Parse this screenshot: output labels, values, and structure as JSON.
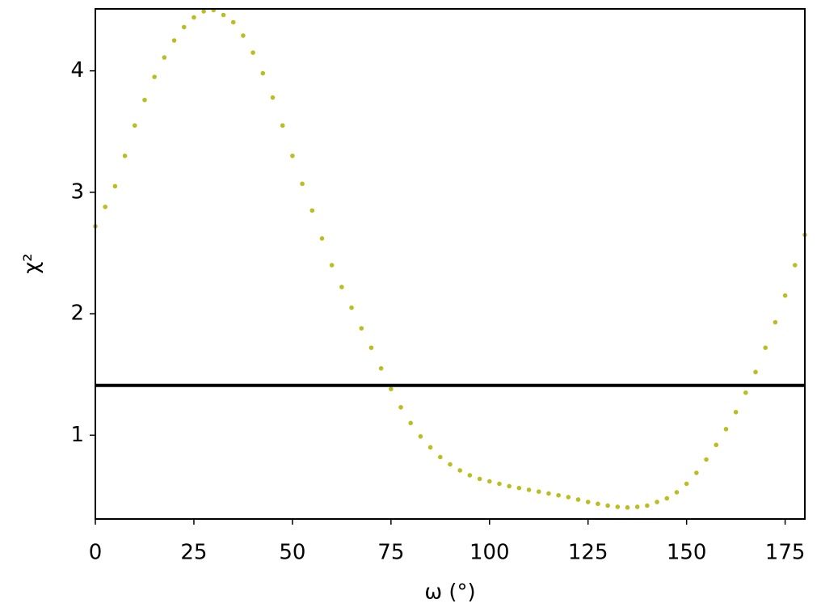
{
  "chart_data": {
    "type": "scatter",
    "xlabel": "ω (°)",
    "ylabel": "χ²",
    "x": [
      0,
      2.5,
      5,
      7.5,
      10,
      12.5,
      15,
      17.5,
      20,
      22.5,
      25,
      27.5,
      30,
      32.5,
      35,
      37.5,
      40,
      42.5,
      45,
      47.5,
      50,
      52.5,
      55,
      57.5,
      60,
      62.5,
      65,
      67.5,
      70,
      72.5,
      75,
      77.5,
      80,
      82.5,
      85,
      87.5,
      90,
      92.5,
      95,
      97.5,
      100,
      102.5,
      105,
      107.5,
      110,
      112.5,
      115,
      117.5,
      120,
      122.5,
      125,
      127.5,
      130,
      132.5,
      135,
      137.5,
      140,
      142.5,
      145,
      147.5,
      150,
      152.5,
      155,
      157.5,
      160,
      162.5,
      165,
      167.5,
      170,
      172.5,
      175,
      177.5,
      180
    ],
    "values": [
      2.72,
      2.88,
      3.05,
      3.3,
      3.55,
      3.76,
      3.95,
      4.11,
      4.25,
      4.36,
      4.44,
      4.49,
      4.5,
      4.46,
      4.4,
      4.29,
      4.15,
      3.98,
      3.78,
      3.55,
      3.3,
      3.07,
      2.85,
      2.62,
      2.4,
      2.22,
      2.05,
      1.88,
      1.72,
      1.55,
      1.38,
      1.23,
      1.1,
      0.99,
      0.9,
      0.82,
      0.76,
      0.71,
      0.67,
      0.64,
      0.62,
      0.6,
      0.58,
      0.565,
      0.55,
      0.535,
      0.52,
      0.505,
      0.49,
      0.47,
      0.45,
      0.435,
      0.42,
      0.41,
      0.405,
      0.41,
      0.42,
      0.45,
      0.48,
      0.53,
      0.6,
      0.69,
      0.8,
      0.92,
      1.05,
      1.19,
      1.35,
      1.52,
      1.72,
      1.93,
      2.15,
      2.4,
      2.65
    ],
    "color": "#bcbd22",
    "hline": 1.41,
    "hline_color": "#000000",
    "xlim": [
      0,
      180
    ],
    "xticks": [
      0,
      25,
      50,
      75,
      100,
      125,
      150,
      175
    ],
    "ylim": [
      0.31,
      4.51
    ],
    "yticks": [
      1,
      2,
      3,
      4
    ],
    "grid": false
  }
}
